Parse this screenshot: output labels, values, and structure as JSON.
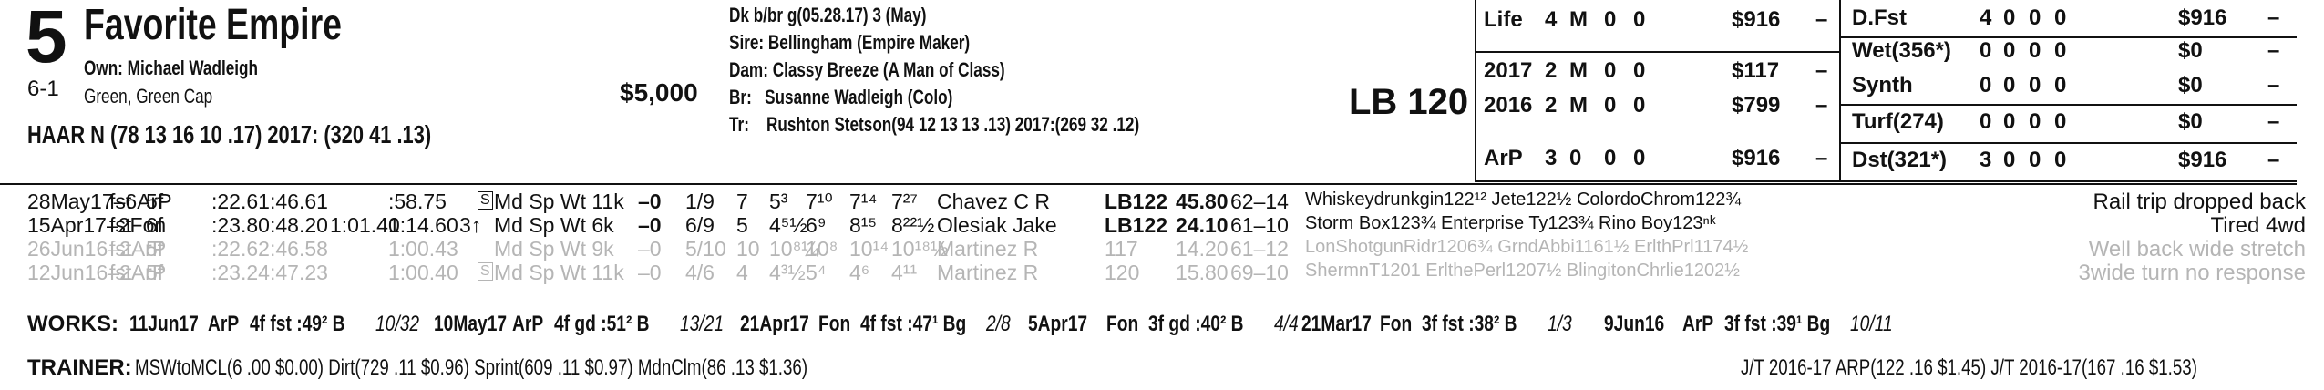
{
  "horse": {
    "number": "5",
    "odds": "6-1",
    "name": "Favorite Empire",
    "owner": "Own: Michael Wadleigh",
    "silks": "Green, Green Cap",
    "claim_price": "$5,000",
    "jockey_line": "HAAR N (78 13 16 10 .17) 2017: (320 41 .13)",
    "breeding": {
      "color_sex": "Dk b/br g(05.28.17) 3 (May)",
      "sire": "Sire: Bellingham (Empire Maker)",
      "dam_label": "Dam:",
      "dam": "Classy Breeze (A Man of Class)",
      "breeder_label": "Br:",
      "breeder": "Susanne Wadleigh (Colo)",
      "trainer_label": "Tr:",
      "trainer": "Rushton Stetson(94 12 13 13 .13) 2017:(269 32 .12)"
    },
    "weight": "LB 120"
  },
  "record_left": [
    {
      "label": "Life",
      "s": "4",
      "w": "M",
      "p": "0",
      "sh": "0",
      "earn": "$916",
      "dash": "–"
    },
    {
      "label": "2017",
      "s": "2",
      "w": "M",
      "p": "0",
      "sh": "0",
      "earn": "$117",
      "dash": "–"
    },
    {
      "label": "2016",
      "s": "2",
      "w": "M",
      "p": "0",
      "sh": "0",
      "earn": "$799",
      "dash": "–"
    },
    {
      "label": "ArP",
      "s": "3",
      "w": "0",
      "p": "0",
      "sh": "0",
      "earn": "$916",
      "dash": "–"
    }
  ],
  "record_right": [
    {
      "label": "D.Fst",
      "s": "4",
      "w": "0",
      "p": "0",
      "sh": "0",
      "earn": "$916",
      "dash": "–"
    },
    {
      "label": "Wet(356*)",
      "s": "0",
      "w": "0",
      "p": "0",
      "sh": "0",
      "earn": "$0",
      "dash": "–"
    },
    {
      "label": "Synth",
      "s": "0",
      "w": "0",
      "p": "0",
      "sh": "0",
      "earn": "$0",
      "dash": "–"
    },
    {
      "label": "Turf(274)",
      "s": "0",
      "w": "0",
      "p": "0",
      "sh": "0",
      "earn": "$0",
      "dash": "–"
    },
    {
      "label": "Dst(321*)",
      "s": "3",
      "w": "0",
      "p": "0",
      "sh": "0",
      "earn": "$916",
      "dash": "–"
    }
  ],
  "races": [
    {
      "date": "28May17–6ArP",
      "cond": "fst",
      "dist": "5f",
      "f1": ":22.61",
      "f2": ":46.61",
      "f3": "",
      "f4": ":58.75",
      "race": "Md Sp Wt 11k",
      "s_badge": "S",
      "age": "",
      "beyer": "–0",
      "post": "1/9",
      "start": "7",
      "c1": "5³",
      "c2": "7¹⁰",
      "str": "7¹⁴",
      "fin": "7²⁷",
      "jockey": "Chavez C R",
      "med_wt": "LB122",
      "odds": "45.80",
      "figs": "62–14",
      "top3": "Whiskeydrunkgin122¹² Jete122½ ColordoChrom122¾",
      "comment": "Rail trip dropped back",
      "grey": false
    },
    {
      "date": "15Apr17–2Fon",
      "cond": "fst",
      "dist": "6f",
      "f1": ":23.80",
      "f2": ":48.20",
      "f3": "1:01.40",
      "f4": "1:14.60",
      "race": "Md Sp Wt 6k",
      "s_badge": "",
      "age": "3↑",
      "beyer": "–0",
      "post": "6/9",
      "start": "5",
      "c1": "4⁵½",
      "c2": "6⁹",
      "str": "8¹⁵",
      "fin": "8²²½",
      "jockey": "Olesiak Jake",
      "med_wt": "LB122",
      "odds": "24.10",
      "figs": "61–10",
      "top3": "Storm Box123¾ Enterprise Ty123¾ Rino Boy123ⁿᵏ",
      "comment": "Tired 4wd",
      "grey": false
    },
    {
      "date": "26Jun16–2ArP",
      "cond": "fst",
      "dist": "5f",
      "f1": ":22.62",
      "f2": ":46.58",
      "f3": "",
      "f4": "1:00.43",
      "race": "Md Sp Wt 9k",
      "s_badge": "",
      "age": "",
      "beyer": "–0",
      "post": "5/10",
      "start": "10",
      "c1": "10⁸¼",
      "c2": "10⁸",
      "str": "10¹⁴",
      "fin": "10¹⁸½",
      "jockey": "Martinez R",
      "med_wt": "117",
      "odds": "14.20",
      "figs": "61–12",
      "top3": "LonShotgunRidr1206¾ GrndAbbi1161½ ErlthPrl1174½",
      "comment": "Well back wide stretch",
      "grey": true
    },
    {
      "date": "12Jun16–2ArP",
      "cond": "fst",
      "dist": "5f",
      "f1": ":23.24",
      "f2": ":47.23",
      "f3": "",
      "f4": "1:00.40",
      "race": "Md Sp Wt 11k",
      "s_badge": "S",
      "age": "",
      "beyer": "–0",
      "post": "4/6",
      "start": "4",
      "c1": "4³½",
      "c2": "5⁴",
      "str": "4⁶",
      "fin": "4¹¹",
      "jockey": "Martinez R",
      "med_wt": "120",
      "odds": "15.80",
      "figs": "69–10",
      "top3": "ShermnT1201 ErlthePerl1207½ BlingitonChrlie1202½",
      "comment": "3wide turn no response",
      "grey": true
    }
  ],
  "works_label": "WORKS:",
  "works": [
    {
      "date": "11Jun17",
      "track": "ArP",
      "detail": "4f fst :49² B",
      "rank": "10/32"
    },
    {
      "date": "10May17",
      "track": "ArP",
      "detail": "4f gd :51² B",
      "rank": "13/21"
    },
    {
      "date": "21Apr17",
      "track": "Fon",
      "detail": "4f fst :47¹ Bg",
      "rank": "2/8"
    },
    {
      "date": "5Apr17",
      "track": "Fon",
      "detail": "3f gd :40² B",
      "rank": "4/4"
    },
    {
      "date": "21Mar17",
      "track": "Fon",
      "detail": "3f fst :38² B",
      "rank": "1/3"
    },
    {
      "date": "9Jun16",
      "track": "ArP",
      "detail": "3f fst :39¹ Bg",
      "rank": "10/11"
    }
  ],
  "trainer_label": "TRAINER:",
  "trainer_stats": "MSWtoMCL(6 .00 $0.00) Dirt(729 .11 $0.96) Sprint(609 .11 $0.97) MdnClm(86 .13 $1.36)",
  "jt_stats": "J/T 2016-17 ARP(122 .16 $1.45) J/T 2016-17(167 .16 $1.53)"
}
